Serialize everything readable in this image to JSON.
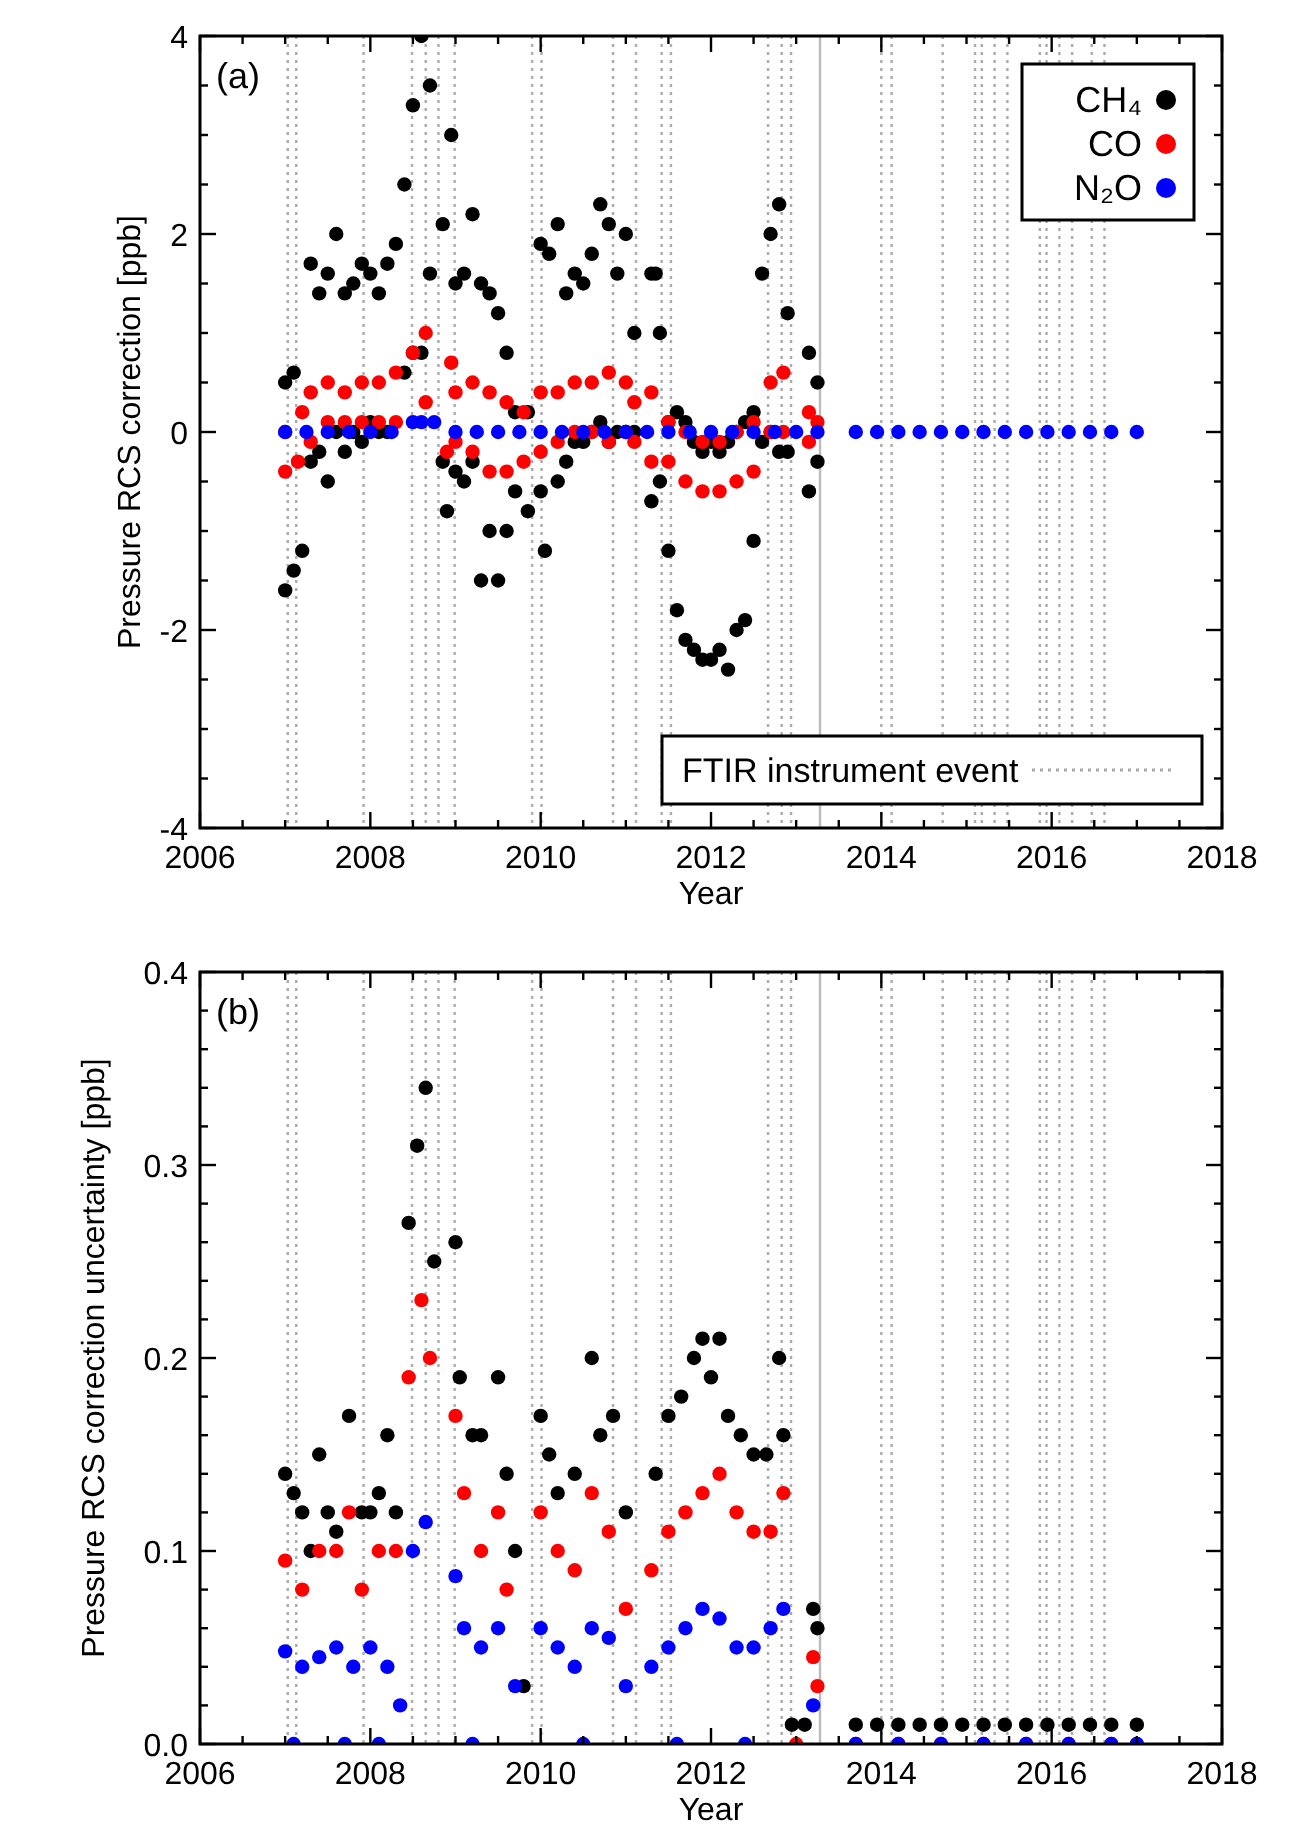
{
  "chart_data": [
    {
      "type": "scatter",
      "xlabel": "Year",
      "ylabel": "Pressure RCS correction [ppb]",
      "legend": "top right",
      "marker": "circle",
      "xlim": [
        2006,
        2018
      ],
      "xticks": [
        2006,
        {
          "value": 2006.5,
          "label": null
        },
        {
          "value": 2007,
          "label": null
        },
        {
          "value": 2007.5,
          "label": null
        },
        2008,
        {
          "value": 2008.5,
          "label": null
        },
        {
          "value": 2009,
          "label": null
        },
        {
          "value": 2009.5,
          "label": null
        },
        2010,
        {
          "value": 2010.5,
          "label": null
        },
        {
          "value": 2011,
          "label": null
        },
        {
          "value": 2011.5,
          "label": null
        },
        2012,
        {
          "value": 2012.5,
          "label": null
        },
        {
          "value": 2013,
          "label": null
        },
        {
          "value": 2013.5,
          "label": null
        },
        2014,
        {
          "value": 2014.5,
          "label": null
        },
        {
          "value": 2015,
          "label": null
        },
        {
          "value": 2015.5,
          "label": null
        },
        2016,
        {
          "value": 2016.5,
          "label": null
        },
        {
          "value": 2017,
          "label": null
        },
        {
          "value": 2017.5,
          "label": null
        },
        2018
      ],
      "ylim": [
        -4,
        4
      ],
      "yticks": [
        -4,
        {
          "value": -3.5,
          "label": null
        },
        {
          "value": -3,
          "label": null
        },
        {
          "value": -2.5,
          "label": null
        },
        -2,
        {
          "value": -1.5,
          "label": null
        },
        {
          "value": -1,
          "label": null
        },
        {
          "value": -0.5,
          "label": null
        },
        0,
        {
          "value": 0.5,
          "label": null
        },
        {
          "value": 1,
          "label": null
        },
        {
          "value": 1.5,
          "label": null
        },
        2,
        {
          "value": 2.5,
          "label": null
        },
        {
          "value": 3,
          "label": null
        },
        {
          "value": 3.5,
          "label": null
        },
        4
      ],
      "annotations": [
        "(a)",
        "FTIR instrument event"
      ],
      "ref_lines": [
        {
          "axis": "x",
          "value": 2007.03,
          "color": "#aaaaaa",
          "line_style": "dotted"
        },
        {
          "axis": "x",
          "value": 2007.13,
          "color": "#aaaaaa",
          "line_style": "dotted"
        },
        {
          "axis": "x",
          "value": 2007.92,
          "color": "#aaaaaa",
          "line_style": "dotted"
        },
        {
          "axis": "x",
          "value": 2008.49,
          "color": "#aaaaaa",
          "line_style": "dotted"
        },
        {
          "axis": "x",
          "value": 2008.65,
          "color": "#aaaaaa",
          "line_style": "dotted"
        },
        {
          "axis": "x",
          "value": 2008.8,
          "color": "#aaaaaa",
          "line_style": "dotted"
        },
        {
          "axis": "x",
          "value": 2008.99,
          "color": "#aaaaaa",
          "line_style": "dotted"
        },
        {
          "axis": "x",
          "value": 2009.9,
          "color": "#aaaaaa",
          "line_style": "dotted"
        },
        {
          "axis": "x",
          "value": 2010.01,
          "color": "#aaaaaa",
          "line_style": "dotted"
        },
        {
          "axis": "x",
          "value": 2010.85,
          "color": "#aaaaaa",
          "line_style": "dotted"
        },
        {
          "axis": "x",
          "value": 2011.12,
          "color": "#aaaaaa",
          "line_style": "dotted"
        },
        {
          "axis": "x",
          "value": 2011.42,
          "color": "#aaaaaa",
          "line_style": "dotted"
        },
        {
          "axis": "x",
          "value": 2011.53,
          "color": "#aaaaaa",
          "line_style": "dotted"
        },
        {
          "axis": "x",
          "value": 2012.67,
          "color": "#aaaaaa",
          "line_style": "dotted"
        },
        {
          "axis": "x",
          "value": 2012.83,
          "color": "#aaaaaa",
          "line_style": "dotted"
        },
        {
          "axis": "x",
          "value": 2012.94,
          "color": "#aaaaaa",
          "line_style": "dotted"
        },
        {
          "axis": "x",
          "value": 2013.28,
          "color": "#bbbbbb",
          "line_style": "solid"
        },
        {
          "axis": "x",
          "value": 2014.0,
          "color": "#aaaaaa",
          "line_style": "dotted"
        },
        {
          "axis": "x",
          "value": 2014.12,
          "color": "#aaaaaa",
          "line_style": "dotted"
        },
        {
          "axis": "x",
          "value": 2014.72,
          "color": "#aaaaaa",
          "line_style": "dotted"
        },
        {
          "axis": "x",
          "value": 2015.1,
          "color": "#aaaaaa",
          "line_style": "dotted"
        },
        {
          "axis": "x",
          "value": 2015.18,
          "color": "#aaaaaa",
          "line_style": "dotted"
        },
        {
          "axis": "x",
          "value": 2015.33,
          "color": "#aaaaaa",
          "line_style": "dotted"
        },
        {
          "axis": "x",
          "value": 2015.48,
          "color": "#aaaaaa",
          "line_style": "dotted"
        },
        {
          "axis": "x",
          "value": 2015.86,
          "color": "#aaaaaa",
          "line_style": "dotted"
        },
        {
          "axis": "x",
          "value": 2015.94,
          "color": "#aaaaaa",
          "line_style": "dotted"
        },
        {
          "axis": "x",
          "value": 2016.09,
          "color": "#aaaaaa",
          "line_style": "dotted"
        },
        {
          "axis": "x",
          "value": 2016.24,
          "color": "#aaaaaa",
          "line_style": "dotted"
        },
        {
          "axis": "x",
          "value": 2016.47,
          "color": "#aaaaaa",
          "line_style": "dotted"
        },
        {
          "axis": "x",
          "value": 2016.62,
          "color": "#aaaaaa",
          "line_style": "dotted"
        }
      ],
      "series": [
        {
          "name": "CH₄",
          "color": "#000000",
          "x": [
            2007.0,
            2007.0,
            2007.1,
            2007.1,
            2007.2,
            2007.3,
            2007.3,
            2007.4,
            2007.4,
            2007.5,
            2007.5,
            2007.6,
            2007.6,
            2007.7,
            2007.7,
            2007.8,
            2007.8,
            2007.9,
            2007.9,
            2008.0,
            2008.0,
            2008.1,
            2008.1,
            2008.2,
            2008.2,
            2008.3,
            2008.4,
            2008.4,
            2008.5,
            2008.5,
            2008.6,
            2008.6,
            2008.7,
            2008.7,
            2008.85,
            2008.85,
            2008.95,
            2008.9,
            2009.0,
            2009.0,
            2009.1,
            2009.1,
            2009.2,
            2009.2,
            2009.3,
            2009.3,
            2009.4,
            2009.4,
            2009.5,
            2009.5,
            2009.6,
            2009.6,
            2009.7,
            2009.7,
            2009.85,
            2009.85,
            2010.0,
            2010.0,
            2010.05,
            2010.1,
            2010.2,
            2010.2,
            2010.3,
            2010.3,
            2010.4,
            2010.4,
            2010.5,
            2010.5,
            2010.6,
            2010.6,
            2010.7,
            2010.7,
            2010.8,
            2010.8,
            2010.9,
            2010.9,
            2011.0,
            2011.0,
            2011.1,
            2011.1,
            2011.3,
            2011.3,
            2011.35,
            2011.4,
            2011.4,
            2011.5,
            2011.5,
            2011.6,
            2011.6,
            2011.7,
            2011.7,
            2011.8,
            2011.8,
            2011.9,
            2011.9,
            2012.0,
            2012.0,
            2012.1,
            2012.1,
            2012.2,
            2012.2,
            2012.3,
            2012.3,
            2012.4,
            2012.4,
            2012.5,
            2012.5,
            2012.6,
            2012.6,
            2012.7,
            2012.7,
            2012.8,
            2012.8,
            2012.9,
            2012.9,
            2013.15,
            2013.15,
            2013.25,
            2013.25
          ],
          "values": [
            -1.6,
            0.5,
            -1.4,
            0.6,
            -1.2,
            1.7,
            -0.3,
            1.4,
            -0.2,
            1.6,
            -0.5,
            2.0,
            0.0,
            1.4,
            -0.2,
            1.5,
            0.0,
            1.7,
            -0.1,
            1.6,
            0.1,
            1.4,
            0.0,
            1.7,
            0.0,
            1.9,
            2.5,
            0.6,
            3.3,
            0.8,
            4.0,
            0.8,
            3.5,
            1.6,
            2.1,
            -0.3,
            3.0,
            -0.8,
            1.5,
            -0.4,
            1.6,
            -0.5,
            2.2,
            -0.3,
            1.5,
            -1.5,
            1.4,
            -1.0,
            1.2,
            -1.5,
            0.8,
            -1.0,
            0.2,
            -0.6,
            0.2,
            -0.8,
            1.9,
            -0.6,
            -1.2,
            1.8,
            2.1,
            -0.5,
            1.4,
            -0.3,
            1.6,
            -0.1,
            1.5,
            -0.1,
            1.8,
            0.0,
            2.3,
            0.1,
            2.1,
            -0.1,
            1.6,
            0.0,
            2.0,
            0.0,
            1.0,
            0.0,
            1.6,
            -0.7,
            1.6,
            1.0,
            -0.5,
            0.1,
            -1.2,
            0.2,
            -1.8,
            0.1,
            -2.1,
            -0.1,
            -2.2,
            -0.2,
            -2.3,
            -0.1,
            -2.3,
            -0.2,
            -2.2,
            -0.1,
            -2.4,
            0.0,
            -2.0,
            0.1,
            -1.9,
            0.2,
            -1.1,
            1.6,
            -0.1,
            2.0,
            0.0,
            2.3,
            -0.2,
            1.2,
            -0.2,
            0.8,
            -0.6,
            0.5,
            -0.3
          ]
        },
        {
          "name": "CO",
          "color": "#ff0000",
          "x": [
            2007.0,
            2007.0,
            2007.15,
            2007.2,
            2007.3,
            2007.3,
            2007.5,
            2007.5,
            2007.7,
            2007.7,
            2007.9,
            2007.9,
            2008.1,
            2008.1,
            2008.3,
            2008.3,
            2008.5,
            2008.65,
            2008.65,
            2008.95,
            2008.9,
            2009.0,
            2009.0,
            2009.2,
            2009.2,
            2009.4,
            2009.4,
            2009.6,
            2009.6,
            2009.8,
            2009.8,
            2010.0,
            2010.0,
            2010.2,
            2010.2,
            2010.4,
            2010.4,
            2010.6,
            2010.6,
            2010.8,
            2010.8,
            2011.0,
            2011.0,
            2011.1,
            2011.1,
            2011.3,
            2011.3,
            2011.5,
            2011.5,
            2011.7,
            2011.7,
            2011.9,
            2011.9,
            2012.1,
            2012.1,
            2012.3,
            2012.3,
            2012.5,
            2012.5,
            2012.7,
            2012.7,
            2012.85,
            2012.85,
            2013.15,
            2013.15,
            2013.25
          ],
          "values": [
            -0.4,
            0.0,
            -0.3,
            0.2,
            0.4,
            -0.1,
            0.5,
            0.1,
            0.4,
            0.1,
            0.5,
            0.1,
            0.5,
            0.1,
            0.6,
            0.1,
            0.8,
            1.0,
            0.3,
            0.7,
            -0.2,
            0.4,
            -0.1,
            0.5,
            -0.2,
            0.4,
            -0.4,
            0.3,
            -0.4,
            0.2,
            -0.3,
            0.4,
            -0.2,
            0.4,
            -0.1,
            0.5,
            0.0,
            0.5,
            0.0,
            0.6,
            -0.1,
            0.5,
            0.0,
            0.3,
            -0.1,
            0.4,
            -0.3,
            0.1,
            -0.3,
            0.0,
            -0.5,
            -0.1,
            -0.6,
            -0.1,
            -0.6,
            0.0,
            -0.5,
            0.1,
            -0.4,
            0.5,
            0.0,
            0.6,
            0.0,
            0.2,
            -0.1,
            0.1
          ]
        },
        {
          "name": "N₂O",
          "color": "#0000ff",
          "x": [
            2007.0,
            2007.25,
            2007.5,
            2007.75,
            2008.0,
            2008.25,
            2008.5,
            2008.6,
            2008.75,
            2009.0,
            2009.25,
            2009.5,
            2009.75,
            2010.0,
            2010.25,
            2010.5,
            2010.75,
            2011.0,
            2011.25,
            2011.5,
            2011.75,
            2012.0,
            2012.25,
            2012.5,
            2012.75,
            2013.0,
            2013.25,
            2013.7,
            2013.95,
            2014.2,
            2014.45,
            2014.7,
            2014.95,
            2015.2,
            2015.45,
            2015.7,
            2015.95,
            2016.2,
            2016.45,
            2016.7,
            2017.0
          ],
          "values": [
            0.0,
            0.0,
            0.0,
            0.0,
            0.0,
            0.0,
            0.1,
            0.1,
            0.1,
            0.0,
            0.0,
            0.0,
            0.0,
            0.0,
            0.0,
            0.0,
            0.0,
            0.0,
            0.0,
            0.0,
            0.0,
            0.0,
            0.0,
            0.0,
            0.0,
            0.0,
            0.0,
            0.0,
            0.0,
            0.0,
            0.0,
            0.0,
            0.0,
            0.0,
            0.0,
            0.0,
            0.0,
            0.0,
            0.0,
            0.0,
            0.0
          ]
        }
      ]
    },
    {
      "type": "scatter",
      "xlabel": "Year",
      "ylabel": "Pressure RCS correction uncertainty [ppb]",
      "marker": "circle",
      "xlim": [
        2006,
        2018
      ],
      "xticks": [
        2006,
        {
          "value": 2006.5,
          "label": null
        },
        {
          "value": 2007,
          "label": null
        },
        {
          "value": 2007.5,
          "label": null
        },
        2008,
        {
          "value": 2008.5,
          "label": null
        },
        {
          "value": 2009,
          "label": null
        },
        {
          "value": 2009.5,
          "label": null
        },
        2010,
        {
          "value": 2010.5,
          "label": null
        },
        {
          "value": 2011,
          "label": null
        },
        {
          "value": 2011.5,
          "label": null
        },
        2012,
        {
          "value": 2012.5,
          "label": null
        },
        {
          "value": 2013,
          "label": null
        },
        {
          "value": 2013.5,
          "label": null
        },
        2014,
        {
          "value": 2014.5,
          "label": null
        },
        {
          "value": 2015,
          "label": null
        },
        {
          "value": 2015.5,
          "label": null
        },
        2016,
        {
          "value": 2016.5,
          "label": null
        },
        {
          "value": 2017,
          "label": null
        },
        {
          "value": 2017.5,
          "label": null
        },
        2018
      ],
      "ylim": [
        0,
        0.4
      ],
      "yticks": [
        {
          "value": 0,
          "label": "0.0"
        },
        {
          "value": 0.02,
          "label": null
        },
        {
          "value": 0.04,
          "label": null
        },
        {
          "value": 0.06,
          "label": null
        },
        {
          "value": 0.08,
          "label": null
        },
        0.1,
        {
          "value": 0.12,
          "label": null
        },
        {
          "value": 0.14,
          "label": null
        },
        {
          "value": 0.16,
          "label": null
        },
        {
          "value": 0.18,
          "label": null
        },
        0.2,
        {
          "value": 0.22,
          "label": null
        },
        {
          "value": 0.24,
          "label": null
        },
        {
          "value": 0.26,
          "label": null
        },
        {
          "value": 0.28,
          "label": null
        },
        0.3,
        {
          "value": 0.32,
          "label": null
        },
        {
          "value": 0.34,
          "label": null
        },
        {
          "value": 0.36,
          "label": null
        },
        {
          "value": 0.38,
          "label": null
        },
        0.4
      ],
      "annotations": [
        "(b)"
      ],
      "ref_lines": [
        {
          "axis": "x",
          "value": 2007.03,
          "color": "#aaaaaa",
          "line_style": "dotted"
        },
        {
          "axis": "x",
          "value": 2007.13,
          "color": "#aaaaaa",
          "line_style": "dotted"
        },
        {
          "axis": "x",
          "value": 2007.92,
          "color": "#aaaaaa",
          "line_style": "dotted"
        },
        {
          "axis": "x",
          "value": 2008.49,
          "color": "#aaaaaa",
          "line_style": "dotted"
        },
        {
          "axis": "x",
          "value": 2008.65,
          "color": "#aaaaaa",
          "line_style": "dotted"
        },
        {
          "axis": "x",
          "value": 2008.8,
          "color": "#aaaaaa",
          "line_style": "dotted"
        },
        {
          "axis": "x",
          "value": 2008.99,
          "color": "#aaaaaa",
          "line_style": "dotted"
        },
        {
          "axis": "x",
          "value": 2009.9,
          "color": "#aaaaaa",
          "line_style": "dotted"
        },
        {
          "axis": "x",
          "value": 2010.01,
          "color": "#aaaaaa",
          "line_style": "dotted"
        },
        {
          "axis": "x",
          "value": 2010.85,
          "color": "#aaaaaa",
          "line_style": "dotted"
        },
        {
          "axis": "x",
          "value": 2011.12,
          "color": "#aaaaaa",
          "line_style": "dotted"
        },
        {
          "axis": "x",
          "value": 2011.42,
          "color": "#aaaaaa",
          "line_style": "dotted"
        },
        {
          "axis": "x",
          "value": 2011.53,
          "color": "#aaaaaa",
          "line_style": "dotted"
        },
        {
          "axis": "x",
          "value": 2012.67,
          "color": "#aaaaaa",
          "line_style": "dotted"
        },
        {
          "axis": "x",
          "value": 2012.83,
          "color": "#aaaaaa",
          "line_style": "dotted"
        },
        {
          "axis": "x",
          "value": 2012.94,
          "color": "#aaaaaa",
          "line_style": "dotted"
        },
        {
          "axis": "x",
          "value": 2013.28,
          "color": "#bbbbbb",
          "line_style": "solid"
        },
        {
          "axis": "x",
          "value": 2014.0,
          "color": "#aaaaaa",
          "line_style": "dotted"
        },
        {
          "axis": "x",
          "value": 2014.12,
          "color": "#aaaaaa",
          "line_style": "dotted"
        },
        {
          "axis": "x",
          "value": 2014.72,
          "color": "#aaaaaa",
          "line_style": "dotted"
        },
        {
          "axis": "x",
          "value": 2015.1,
          "color": "#aaaaaa",
          "line_style": "dotted"
        },
        {
          "axis": "x",
          "value": 2015.18,
          "color": "#aaaaaa",
          "line_style": "dotted"
        },
        {
          "axis": "x",
          "value": 2015.33,
          "color": "#aaaaaa",
          "line_style": "dotted"
        },
        {
          "axis": "x",
          "value": 2015.48,
          "color": "#aaaaaa",
          "line_style": "dotted"
        },
        {
          "axis": "x",
          "value": 2015.86,
          "color": "#aaaaaa",
          "line_style": "dotted"
        },
        {
          "axis": "x",
          "value": 2015.94,
          "color": "#aaaaaa",
          "line_style": "dotted"
        },
        {
          "axis": "x",
          "value": 2016.09,
          "color": "#aaaaaa",
          "line_style": "dotted"
        },
        {
          "axis": "x",
          "value": 2016.24,
          "color": "#aaaaaa",
          "line_style": "dotted"
        },
        {
          "axis": "x",
          "value": 2016.47,
          "color": "#aaaaaa",
          "line_style": "dotted"
        },
        {
          "axis": "x",
          "value": 2016.62,
          "color": "#aaaaaa",
          "line_style": "dotted"
        }
      ],
      "series": [
        {
          "color": "#000000",
          "x": [
            2007.0,
            2007.1,
            2007.2,
            2007.3,
            2007.4,
            2007.5,
            2007.6,
            2007.75,
            2007.9,
            2008.0,
            2008.1,
            2008.2,
            2008.3,
            2008.45,
            2008.55,
            2008.65,
            2008.75,
            2009.0,
            2009.05,
            2009.2,
            2009.3,
            2009.5,
            2009.6,
            2009.7,
            2009.8,
            2010.0,
            2010.1,
            2010.2,
            2010.4,
            2010.6,
            2010.7,
            2010.85,
            2011.0,
            2011.35,
            2011.5,
            2011.65,
            2011.8,
            2011.9,
            2012.0,
            2012.1,
            2012.2,
            2012.35,
            2012.5,
            2012.65,
            2012.8,
            2012.85,
            2012.95,
            2013.1,
            2013.2,
            2013.25,
            2013.7,
            2013.95,
            2014.2,
            2014.45,
            2014.7,
            2014.95,
            2015.2,
            2015.45,
            2015.7,
            2015.95,
            2016.2,
            2016.45,
            2016.7,
            2017.0
          ],
          "values": [
            0.14,
            0.13,
            0.12,
            0.1,
            0.15,
            0.12,
            0.11,
            0.17,
            0.12,
            0.12,
            0.13,
            0.16,
            0.12,
            0.27,
            0.31,
            0.34,
            0.25,
            0.26,
            0.19,
            0.16,
            0.16,
            0.19,
            0.14,
            0.1,
            0.03,
            0.17,
            0.15,
            0.13,
            0.14,
            0.2,
            0.16,
            0.17,
            0.12,
            0.14,
            0.17,
            0.18,
            0.2,
            0.21,
            0.19,
            0.21,
            0.17,
            0.16,
            0.15,
            0.15,
            0.2,
            0.16,
            0.01,
            0.01,
            0.07,
            0.06,
            0.01,
            0.01,
            0.01,
            0.01,
            0.01,
            0.01,
            0.01,
            0.01,
            0.01,
            0.01,
            0.01,
            0.01,
            0.01,
            0.01
          ]
        },
        {
          "color": "#ff0000",
          "x": [
            2007.0,
            2007.2,
            2007.4,
            2007.6,
            2007.75,
            2007.9,
            2008.1,
            2008.3,
            2008.45,
            2008.6,
            2008.7,
            2009.0,
            2009.1,
            2009.3,
            2009.5,
            2009.6,
            2010.0,
            2010.2,
            2010.4,
            2010.6,
            2010.8,
            2011.0,
            2011.3,
            2011.5,
            2011.7,
            2011.9,
            2012.1,
            2012.3,
            2012.5,
            2012.7,
            2012.85,
            2013.0,
            2013.2,
            2013.25,
            2013.7,
            2014.2,
            2014.7,
            2015.2,
            2015.7,
            2016.2,
            2016.7,
            2017.0
          ],
          "values": [
            0.095,
            0.08,
            0.1,
            0.1,
            0.12,
            0.08,
            0.1,
            0.1,
            0.19,
            0.23,
            0.2,
            0.17,
            0.13,
            0.1,
            0.12,
            0.08,
            0.12,
            0.1,
            0.09,
            0.13,
            0.11,
            0.07,
            0.09,
            0.11,
            0.12,
            0.13,
            0.14,
            0.12,
            0.11,
            0.11,
            0.13,
            0.0,
            0.045,
            0.03,
            0.0,
            0.0,
            0.0,
            0.0,
            0.0,
            0.0,
            0.0,
            0.0
          ]
        },
        {
          "color": "#0000ff",
          "x": [
            2007.0,
            2007.1,
            2007.2,
            2007.4,
            2007.6,
            2007.7,
            2007.8,
            2008.0,
            2008.1,
            2008.2,
            2008.35,
            2008.5,
            2008.65,
            2009.0,
            2009.1,
            2009.2,
            2009.3,
            2009.5,
            2009.7,
            2010.0,
            2010.2,
            2010.4,
            2010.5,
            2010.6,
            2010.8,
            2011.0,
            2011.3,
            2011.5,
            2011.6,
            2011.7,
            2011.9,
            2012.1,
            2012.3,
            2012.4,
            2012.5,
            2012.7,
            2012.85,
            2013.2,
            2013.7,
            2014.2,
            2014.7,
            2015.2,
            2015.7,
            2016.2,
            2016.7,
            2017.0
          ],
          "values": [
            0.048,
            0.0,
            0.04,
            0.045,
            0.05,
            0.0,
            0.04,
            0.05,
            0.0,
            0.04,
            0.02,
            0.1,
            0.115,
            0.087,
            0.06,
            0.0,
            0.05,
            0.06,
            0.03,
            0.06,
            0.05,
            0.04,
            0.0,
            0.06,
            0.055,
            0.03,
            0.04,
            0.05,
            0.0,
            0.06,
            0.07,
            0.065,
            0.05,
            0.0,
            0.05,
            0.06,
            0.07,
            0.02,
            0.0,
            0.0,
            0.0,
            0.0,
            0.0,
            0.0,
            0.0,
            0.0
          ]
        }
      ]
    }
  ]
}
